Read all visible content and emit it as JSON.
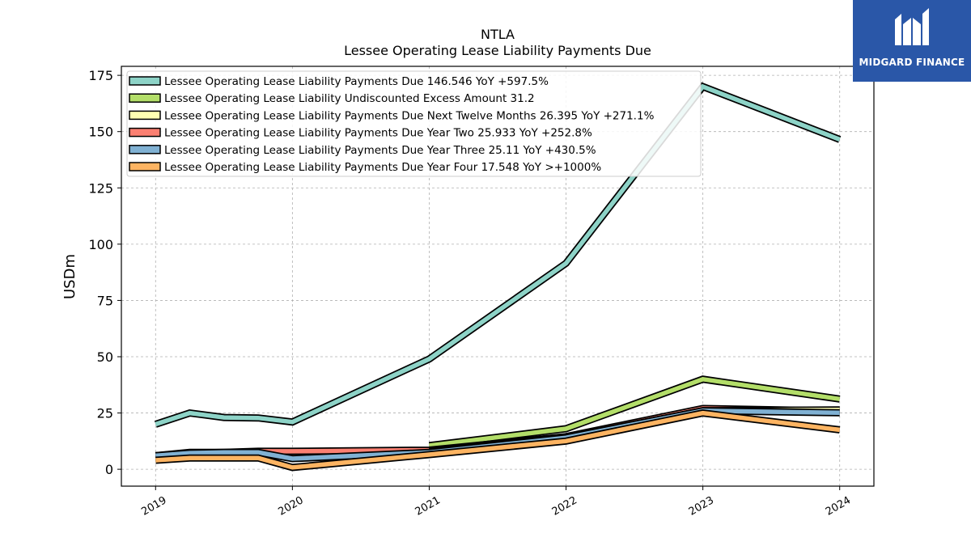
{
  "brand": {
    "name": "MIDGARD FINANCE",
    "color": "#2a57a8"
  },
  "chart_data": {
    "type": "line",
    "title": "NTLA",
    "subtitle": "Lessee Operating Lease Liability Payments Due",
    "ylabel": "USDm",
    "xlabel": "",
    "ylim": [
      -7.5,
      179
    ],
    "yticks": [
      0,
      25,
      50,
      75,
      100,
      125,
      150,
      175
    ],
    "xticks": [
      "2019",
      "2020",
      "2021",
      "2022",
      "2023",
      "2024"
    ],
    "grid": true,
    "legend_position": "top-left",
    "series": [
      {
        "name": "Lessee Operating Lease Liability Payments Due  146.546 YoY +597.5%",
        "color": "#8dd3c7",
        "points": [
          [
            2019.0,
            20.0
          ],
          [
            2019.25,
            25.0
          ],
          [
            2019.5,
            23.0
          ],
          [
            2019.75,
            22.8
          ],
          [
            2020.0,
            21.0
          ],
          [
            2021.0,
            49.0
          ],
          [
            2022.0,
            91.5
          ],
          [
            2023.0,
            170.0
          ],
          [
            2024.0,
            146.5
          ]
        ]
      },
      {
        "name": "Lessee Operating Lease Liability Undiscounted Excess Amount  31.2",
        "color": "#b3de69",
        "points": [
          [
            2021.0,
            10.5
          ],
          [
            2022.0,
            18.0
          ],
          [
            2023.0,
            40.0
          ],
          [
            2024.0,
            31.2
          ]
        ]
      },
      {
        "name": "Lessee Operating Lease Liability Payments Due Next Twelve Months  26.395 YoY +271.1%",
        "color": "#ffffb3",
        "points": [
          [
            2021.0,
            8.0
          ],
          [
            2022.0,
            14.0
          ],
          [
            2023.0,
            26.0
          ],
          [
            2024.0,
            26.4
          ]
        ]
      },
      {
        "name": "Lessee Operating Lease Liability Payments Due Year Two  25.933 YoY +252.8%",
        "color": "#fb8072",
        "points": [
          [
            2019.0,
            6.0
          ],
          [
            2019.25,
            7.5
          ],
          [
            2019.5,
            7.5
          ],
          [
            2019.75,
            8.0
          ],
          [
            2020.0,
            8.0
          ],
          [
            2021.0,
            8.5
          ],
          [
            2022.0,
            14.5
          ],
          [
            2023.0,
            27.0
          ],
          [
            2024.0,
            25.9
          ]
        ]
      },
      {
        "name": "Lessee Operating Lease Liability Payments Due Year Three  25.11 YoY +430.5%",
        "color": "#80b1d3",
        "points": [
          [
            2019.0,
            6.0
          ],
          [
            2019.25,
            7.2
          ],
          [
            2019.5,
            7.5
          ],
          [
            2019.75,
            7.5
          ],
          [
            2020.0,
            4.7
          ],
          [
            2021.0,
            7.5
          ],
          [
            2022.0,
            14.0
          ],
          [
            2023.0,
            26.0
          ],
          [
            2024.0,
            25.1
          ]
        ]
      },
      {
        "name": "Lessee Operating Lease Liability Payments Due Year Four  17.548 YoY >+1000%",
        "color": "#fdb462",
        "points": [
          [
            2019.0,
            4.0
          ],
          [
            2019.25,
            5.0
          ],
          [
            2019.5,
            5.0
          ],
          [
            2019.75,
            5.0
          ],
          [
            2020.0,
            0.8
          ],
          [
            2021.0,
            6.5
          ],
          [
            2022.0,
            12.5
          ],
          [
            2023.0,
            25.0
          ],
          [
            2024.0,
            17.5
          ]
        ]
      }
    ]
  }
}
